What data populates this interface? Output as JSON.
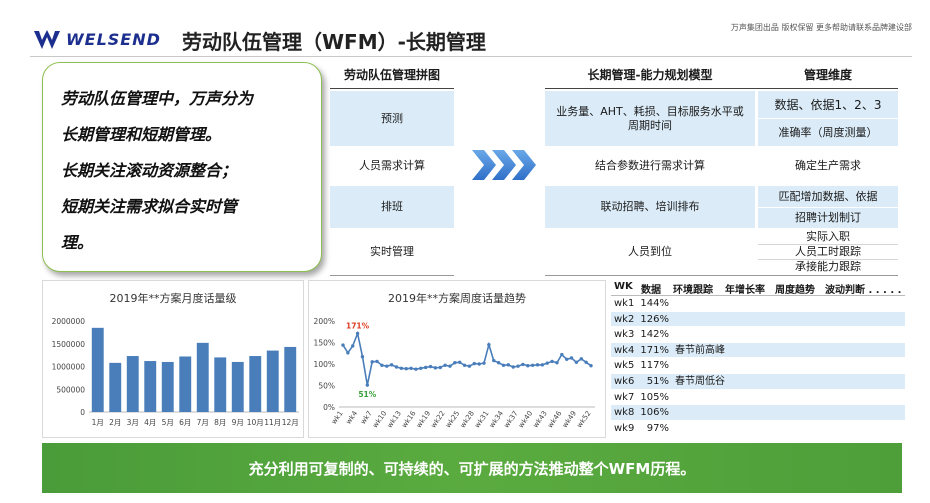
{
  "header": {
    "logo_text": "WELSEND",
    "title": "劳动队伍管理（WFM）-长期管理",
    "note": "万声集团出品  版权保留  更多帮助请联系品牌建设部"
  },
  "intro": {
    "lines": [
      "劳动队伍管理中，万声分为",
      "长期管理和短期管理。",
      "长期关注滚动资源整合；",
      "短期关注需求拟合实时管",
      "理。"
    ]
  },
  "puzzle": {
    "col1_header": "劳动队伍管理拼图",
    "col2_header": "长期管理-能力规划模型",
    "col3_header": "管理维度",
    "rows": [
      {
        "name": "预测",
        "model": "业务量、AHT、耗损、目标服务水平或周期时间",
        "dims": [
          "数据、依据1、2、3",
          "准确率（周度测量）"
        ]
      },
      {
        "name": "人员需求计算",
        "model": "结合参数进行需求计算",
        "dims": [
          "确定生产需求"
        ]
      },
      {
        "name": "排班",
        "model": "联动招聘、培训排布",
        "dims": [
          "匹配增加数据、依据",
          "招聘计划制订"
        ]
      },
      {
        "name": "实时管理",
        "model": "人员到位",
        "dims": [
          "实际入职",
          "人员工时跟踪",
          "承接能力跟踪"
        ]
      }
    ]
  },
  "monthly_chart": {
    "chart_data": {
      "type": "bar",
      "title": "2019年**方案月度话量级",
      "categories": [
        "1月",
        "2月",
        "3月",
        "4月",
        "5月",
        "6月",
        "7月",
        "8月",
        "9月",
        "10月",
        "11月",
        "12月"
      ],
      "values": [
        1850000,
        1080000,
        1230000,
        1120000,
        1100000,
        1220000,
        1520000,
        1200000,
        1100000,
        1230000,
        1350000,
        1430000
      ],
      "ylim": [
        0,
        2000000
      ],
      "yticks": [
        "0",
        "500000",
        "1000000",
        "1500000",
        "2000000"
      ],
      "colors": {
        "bar": "#4a7ebb"
      }
    }
  },
  "weekly_chart": {
    "chart_data": {
      "type": "line",
      "title": "2019年**方案周度话量趋势",
      "x": [
        "wk1",
        "wk2",
        "wk3",
        "wk4",
        "wk5",
        "wk6",
        "wk7",
        "wk8",
        "wk9",
        "wk10",
        "wk11",
        "wk12",
        "wk13",
        "wk14",
        "wk15",
        "wk16",
        "wk17",
        "wk18",
        "wk19",
        "wk20",
        "wk21",
        "wk22",
        "wk23",
        "wk24",
        "wk25",
        "wk26",
        "wk27",
        "wk28",
        "wk29",
        "wk30",
        "wk31",
        "wk32",
        "wk33",
        "wk34",
        "wk35",
        "wk36",
        "wk37",
        "wk38",
        "wk39",
        "wk40",
        "wk41",
        "wk42",
        "wk43",
        "wk44",
        "wk45",
        "wk46",
        "wk47",
        "wk48",
        "wk49",
        "wk50",
        "wk51",
        "wk52"
      ],
      "values": [
        144,
        126,
        142,
        171,
        117,
        51,
        105,
        106,
        97,
        95,
        98,
        93,
        90,
        89,
        90,
        88,
        90,
        92,
        94,
        91,
        92,
        97,
        95,
        103,
        104,
        97,
        95,
        101,
        100,
        102,
        145,
        108,
        103,
        97,
        98,
        93,
        95,
        99,
        96,
        97,
        98,
        98,
        102,
        106,
        103,
        122,
        111,
        114,
        104,
        112,
        104,
        96
      ],
      "ylim": [
        0,
        200
      ],
      "yticks": [
        "0%",
        "50%",
        "100%",
        "150%",
        "200%"
      ],
      "xticks": [
        "wk1",
        "wk4",
        "wk7",
        "wk10",
        "wk13",
        "wk16",
        "wk19",
        "wk22",
        "wk25",
        "wk28",
        "wk31",
        "wk34",
        "wk37",
        "wk40",
        "wk43",
        "wk46",
        "wk49",
        "wk52"
      ],
      "annotations": [
        {
          "label": "171%",
          "index": 3,
          "color": "#e03b24"
        },
        {
          "label": "51%",
          "index": 5,
          "color": "#3aa13a"
        }
      ],
      "colors": {
        "line": "#4a7ebb"
      }
    }
  },
  "weekly_table": {
    "headers": [
      "WK",
      "数据",
      "环境跟踪",
      "年增长率",
      "周度趋势",
      "波动判断 . . . . . ."
    ],
    "rows": [
      {
        "wk": "wk1",
        "value": "144%",
        "note": ""
      },
      {
        "wk": "wk2",
        "value": "126%",
        "note": ""
      },
      {
        "wk": "wk3",
        "value": "142%",
        "note": ""
      },
      {
        "wk": "wk4",
        "value": "171%",
        "note": "春节前高峰"
      },
      {
        "wk": "wk5",
        "value": "117%",
        "note": ""
      },
      {
        "wk": "wk6",
        "value": "51%",
        "note": "春节周低谷"
      },
      {
        "wk": "wk7",
        "value": "105%",
        "note": ""
      },
      {
        "wk": "wk8",
        "value": "106%",
        "note": ""
      },
      {
        "wk": "wk9",
        "value": "97%",
        "note": ""
      }
    ]
  },
  "footer": {
    "text": "充分利用可复制的、可持续的、可扩展的方法推动整个WFM历程。"
  }
}
